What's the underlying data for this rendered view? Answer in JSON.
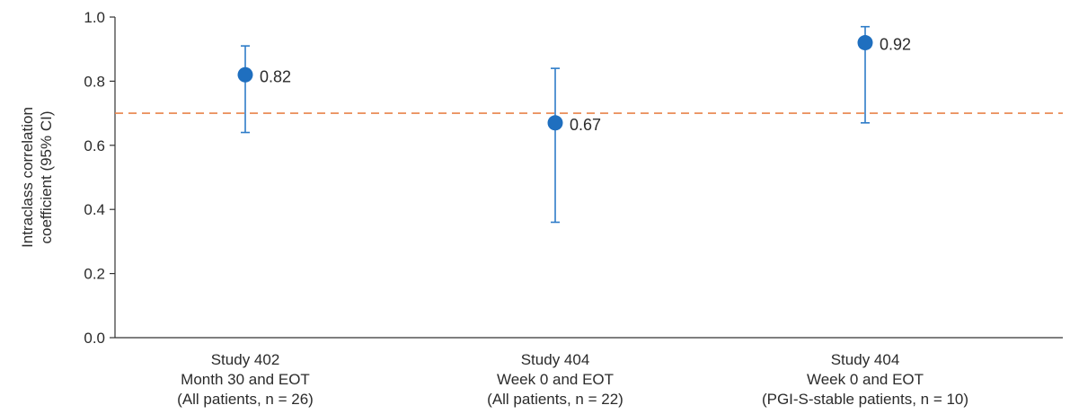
{
  "chart_data": {
    "type": "scatter",
    "ylabel": [
      "Intraclass correlation",
      "coefficient (95% CI)"
    ],
    "ylim": [
      0.0,
      1.0
    ],
    "yticks": [
      0.0,
      0.2,
      0.4,
      0.6,
      0.8,
      1.0
    ],
    "ytick_labels": [
      "0.0",
      "0.2",
      "0.4",
      "0.6",
      "0.8",
      "1.0"
    ],
    "categories": [
      [
        "Study 402",
        "Month 30 and EOT",
        "(All patients, n = 26)"
      ],
      [
        "Study 404",
        "Week 0 and EOT",
        "(All patients, n = 22)"
      ],
      [
        "Study 404",
        "Week 0 and EOT",
        "(PGI-S-stable patients, n = 10)"
      ]
    ],
    "points": [
      {
        "value": 0.82,
        "ci_low": 0.64,
        "ci_high": 0.91,
        "label": "0.82"
      },
      {
        "value": 0.67,
        "ci_low": 0.36,
        "ci_high": 0.84,
        "label": "0.67"
      },
      {
        "value": 0.92,
        "ci_low": 0.67,
        "ci_high": 0.97,
        "label": "0.92"
      }
    ],
    "reference_line": {
      "y": 0.7,
      "style": "dashed",
      "color": "#E8834A"
    },
    "point_color": "#1F6FBF",
    "errorbar_color": "#2E7CC8",
    "grid": false
  }
}
